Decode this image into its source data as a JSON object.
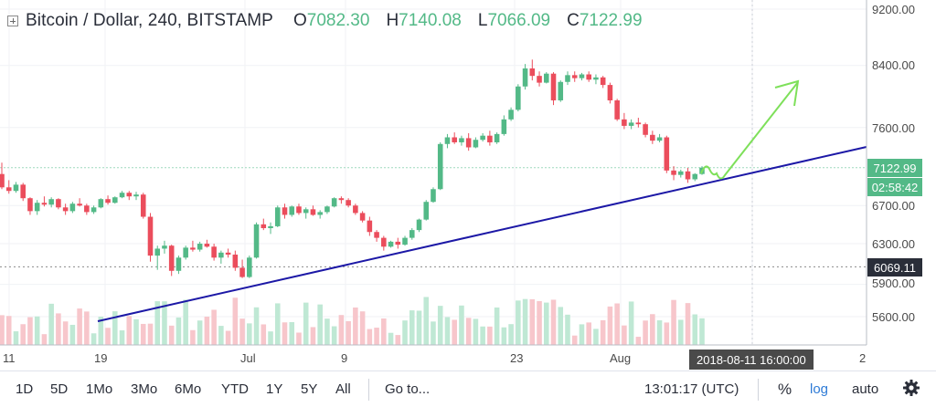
{
  "header": {
    "title": "Bitcoin / Dollar, 240, BITSTAMP",
    "ohlc": [
      {
        "k": "O",
        "v": "7082.30"
      },
      {
        "k": "H",
        "v": "7140.08"
      },
      {
        "k": "L",
        "v": "7066.09"
      },
      {
        "k": "C",
        "v": "7122.99"
      }
    ]
  },
  "chart_data": {
    "type": "candlestick",
    "price_axis_labels": [
      "9200.00",
      "8400.00",
      "7600.00",
      "6700.00",
      "6300.00",
      "5900.00",
      "5600.00"
    ],
    "last_price": "7122.99",
    "countdown": "02:58:42",
    "level_marker": "6069.11",
    "time_axis_labels": [
      "11",
      "19",
      "Jul",
      "9",
      "23",
      "Aug",
      "2"
    ],
    "crosshair_time": "2018-08-11 16:00:00",
    "colors": {
      "up": "#53b987",
      "down": "#eb4d5c",
      "trendline": "#1c18a6",
      "arrow": "#7ee05a"
    },
    "candles": [
      [
        7050,
        7180,
        6880,
        6900
      ],
      [
        6900,
        6980,
        6830,
        6860
      ],
      [
        6860,
        6960,
        6840,
        6930
      ],
      [
        6930,
        6950,
        6750,
        6780
      ],
      [
        6780,
        6790,
        6600,
        6640
      ],
      [
        6640,
        6760,
        6600,
        6730
      ],
      [
        6730,
        6800,
        6690,
        6710
      ],
      [
        6710,
        6790,
        6680,
        6770
      ],
      [
        6770,
        6780,
        6660,
        6680
      ],
      [
        6680,
        6720,
        6600,
        6640
      ],
      [
        6640,
        6740,
        6620,
        6720
      ],
      [
        6720,
        6780,
        6690,
        6700
      ],
      [
        6700,
        6720,
        6600,
        6630
      ],
      [
        6630,
        6700,
        6610,
        6680
      ],
      [
        6680,
        6780,
        6670,
        6770
      ],
      [
        6770,
        6810,
        6710,
        6730
      ],
      [
        6730,
        6800,
        6720,
        6790
      ],
      [
        6790,
        6860,
        6780,
        6840
      ],
      [
        6840,
        6860,
        6760,
        6800
      ],
      [
        6800,
        6850,
        6760,
        6820
      ],
      [
        6820,
        6840,
        6560,
        6580
      ],
      [
        6580,
        6620,
        6120,
        6180
      ],
      [
        6180,
        6280,
        6040,
        6250
      ],
      [
        6250,
        6330,
        6200,
        6280
      ],
      [
        6280,
        6290,
        5980,
        6030
      ],
      [
        6030,
        6180,
        6000,
        6160
      ],
      [
        6160,
        6280,
        6140,
        6260
      ],
      [
        6260,
        6330,
        6220,
        6240
      ],
      [
        6240,
        6320,
        6220,
        6300
      ],
      [
        6300,
        6340,
        6260,
        6270
      ],
      [
        6270,
        6300,
        6130,
        6160
      ],
      [
        6160,
        6230,
        6100,
        6210
      ],
      [
        6210,
        6250,
        6160,
        6190
      ],
      [
        6190,
        6230,
        6030,
        6060
      ],
      [
        6060,
        6140,
        5960,
        5970
      ],
      [
        5970,
        6180,
        5960,
        6160
      ],
      [
        6160,
        6520,
        6150,
        6500
      ],
      [
        6500,
        6560,
        6440,
        6460
      ],
      [
        6460,
        6520,
        6400,
        6480
      ],
      [
        6480,
        6700,
        6470,
        6680
      ],
      [
        6680,
        6720,
        6560,
        6600
      ],
      [
        6600,
        6700,
        6580,
        6690
      ],
      [
        6690,
        6720,
        6600,
        6620
      ],
      [
        6620,
        6680,
        6560,
        6660
      ],
      [
        6660,
        6700,
        6590,
        6600
      ],
      [
        6600,
        6650,
        6560,
        6630
      ],
      [
        6630,
        6700,
        6610,
        6690
      ],
      [
        6690,
        6790,
        6680,
        6780
      ],
      [
        6780,
        6800,
        6720,
        6760
      ],
      [
        6760,
        6780,
        6680,
        6700
      ],
      [
        6700,
        6720,
        6600,
        6620
      ],
      [
        6620,
        6640,
        6520,
        6540
      ],
      [
        6540,
        6580,
        6380,
        6420
      ],
      [
        6420,
        6440,
        6320,
        6360
      ],
      [
        6360,
        6380,
        6230,
        6270
      ],
      [
        6270,
        6330,
        6260,
        6320
      ],
      [
        6320,
        6360,
        6250,
        6290
      ],
      [
        6290,
        6380,
        6280,
        6360
      ],
      [
        6360,
        6460,
        6340,
        6440
      ],
      [
        6440,
        6560,
        6420,
        6550
      ],
      [
        6550,
        6760,
        6540,
        6740
      ],
      [
        6740,
        6900,
        6730,
        6880
      ],
      [
        6880,
        7420,
        6870,
        7400
      ],
      [
        7400,
        7520,
        7350,
        7480
      ],
      [
        7480,
        7540,
        7400,
        7420
      ],
      [
        7420,
        7500,
        7380,
        7470
      ],
      [
        7470,
        7530,
        7320,
        7360
      ],
      [
        7360,
        7480,
        7350,
        7450
      ],
      [
        7450,
        7530,
        7430,
        7500
      ],
      [
        7500,
        7560,
        7380,
        7420
      ],
      [
        7420,
        7540,
        7400,
        7520
      ],
      [
        7520,
        7750,
        7500,
        7700
      ],
      [
        7700,
        7850,
        7680,
        7820
      ],
      [
        7820,
        8150,
        7800,
        8120
      ],
      [
        8120,
        8420,
        8080,
        8360
      ],
      [
        8360,
        8480,
        8200,
        8260
      ],
      [
        8260,
        8320,
        8120,
        8170
      ],
      [
        8170,
        8310,
        8160,
        8290
      ],
      [
        8290,
        8310,
        7880,
        7940
      ],
      [
        7940,
        8200,
        7920,
        8180
      ],
      [
        8180,
        8320,
        8140,
        8270
      ],
      [
        8270,
        8320,
        8180,
        8230
      ],
      [
        8230,
        8300,
        8200,
        8280
      ],
      [
        8280,
        8320,
        8180,
        8210
      ],
      [
        8210,
        8280,
        8150,
        8240
      ],
      [
        8240,
        8260,
        8100,
        8140
      ],
      [
        8140,
        8170,
        7900,
        7940
      ],
      [
        7940,
        7960,
        7680,
        7700
      ],
      [
        7700,
        7780,
        7580,
        7620
      ],
      [
        7620,
        7700,
        7580,
        7660
      ],
      [
        7660,
        7720,
        7600,
        7640
      ],
      [
        7640,
        7660,
        7480,
        7510
      ],
      [
        7510,
        7560,
        7400,
        7440
      ],
      [
        7440,
        7520,
        7420,
        7480
      ],
      [
        7480,
        7500,
        7060,
        7090
      ],
      [
        7090,
        7140,
        6980,
        7040
      ],
      [
        7040,
        7100,
        7010,
        7080
      ],
      [
        7080,
        7120,
        6950,
        6990
      ],
      [
        6990,
        7060,
        6970,
        7050
      ],
      [
        7050,
        7140,
        7040,
        7123
      ]
    ]
  },
  "toolbar": {
    "ranges": [
      "1D",
      "5D",
      "1Mo",
      "3Mo",
      "6Mo",
      "YTD",
      "1Y",
      "5Y",
      "All"
    ],
    "goto": "Go to...",
    "clock": "13:01:17 (UTC)",
    "percent": "%",
    "log": "log",
    "auto": "auto",
    "settings_icon": "gear-icon"
  }
}
